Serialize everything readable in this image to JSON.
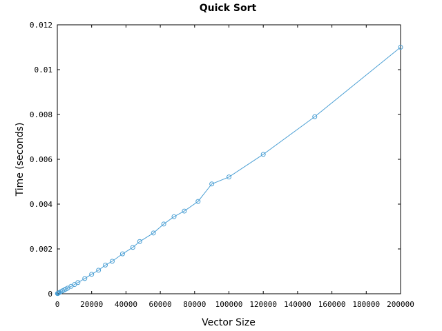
{
  "chart_data": {
    "type": "line",
    "title": "Quick Sort",
    "xlabel": "Vector Size",
    "ylabel": "Time (seconds)",
    "xlim": [
      0,
      200000
    ],
    "ylim": [
      0,
      0.012
    ],
    "xticks": [
      0,
      20000,
      40000,
      60000,
      80000,
      100000,
      120000,
      140000,
      160000,
      180000,
      200000
    ],
    "yticks": [
      0,
      0.002,
      0.004,
      0.006,
      0.008,
      0.01,
      0.012
    ],
    "xtick_labels": [
      "0",
      "20000",
      "40000",
      "60000",
      "80000",
      "100000",
      "120000",
      "140000",
      "160000",
      "180000",
      "200000"
    ],
    "ytick_labels": [
      "0",
      "0.002",
      "0.004",
      "0.006",
      "0.008",
      "0.01",
      "0.012"
    ],
    "grid": false,
    "legend": "none",
    "series": [
      {
        "color": "#4a9fd4",
        "marker": "circle",
        "x": [
          100,
          200,
          400,
          600,
          800,
          1000,
          2000,
          3000,
          4000,
          5000,
          6000,
          8000,
          10000,
          12000,
          16000,
          20000,
          24000,
          28000,
          32000,
          38000,
          44000,
          48000,
          56000,
          62000,
          68000,
          74000,
          82000,
          90000,
          100000,
          120000,
          150000,
          200000
        ],
        "y": [
          1e-05,
          1e-05,
          2e-05,
          3e-05,
          4e-05,
          5e-05,
          9e-05,
          0.00013,
          0.00017,
          0.00021,
          0.00025,
          0.00033,
          0.00041,
          0.0005,
          0.00068,
          0.00087,
          0.00105,
          0.00128,
          0.00145,
          0.00178,
          0.00207,
          0.00233,
          0.00271,
          0.00311,
          0.00344,
          0.00369,
          0.00412,
          0.0049,
          0.00521,
          0.00622,
          0.0079,
          0.011
        ]
      }
    ]
  }
}
